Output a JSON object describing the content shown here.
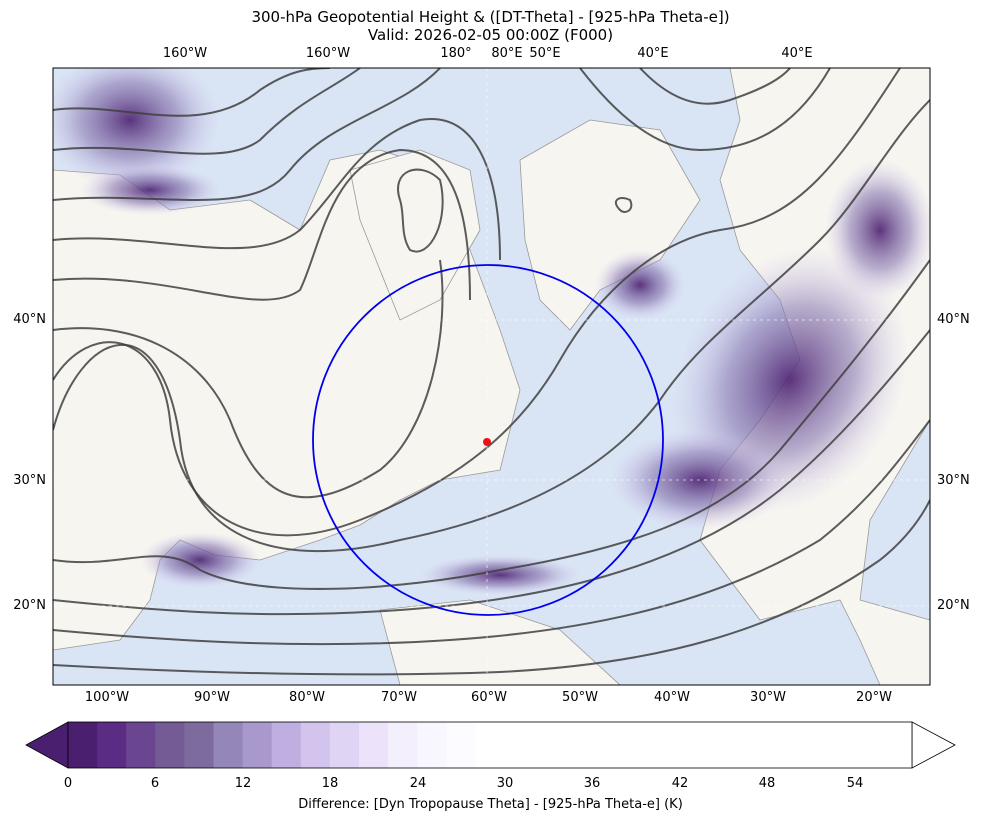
{
  "title": {
    "line1": "300-hPa Geopotential Height & ([DT-Theta] - [925-hPa Theta-e])",
    "line2": "Valid: 2026-02-05 00:00Z (F000)"
  },
  "top_ticks": [
    "160°W",
    "160°W",
    "180°",
    "80°E",
    "50°E",
    "40°E",
    "40°E"
  ],
  "bottom_ticks": [
    "100°W",
    "90°W",
    "80°W",
    "70°W",
    "60°W",
    "50°W",
    "40°W",
    "30°W",
    "20°W"
  ],
  "left_ticks": [
    "40°N",
    "30°N",
    "20°N"
  ],
  "right_ticks": [
    "40°N",
    "30°N",
    "20°N"
  ],
  "colorbar": {
    "ticks": [
      "0",
      "6",
      "12",
      "18",
      "24",
      "30",
      "36",
      "42",
      "48",
      "54"
    ],
    "label": "Difference: [Dyn Tropopause Theta] - [925-hPa Theta-e] (K)",
    "colors": [
      "#4b1f6f",
      "#5b2c83",
      "#6a4590",
      "#745b96",
      "#7d6b9e",
      "#9486b6",
      "#a898cc",
      "#bfaee0",
      "#d3c4ee",
      "#e0d4f5",
      "#ece3fa",
      "#f3effc",
      "#f8f6fe",
      "#fcfbff"
    ]
  },
  "colors": {
    "ocean": "#d9e4f4",
    "land": "#f6f5f0",
    "contour": "#404040",
    "circle": "#0000ee",
    "marker": "#ee1111"
  },
  "map": {
    "circle_label": "",
    "marker_label": ""
  }
}
